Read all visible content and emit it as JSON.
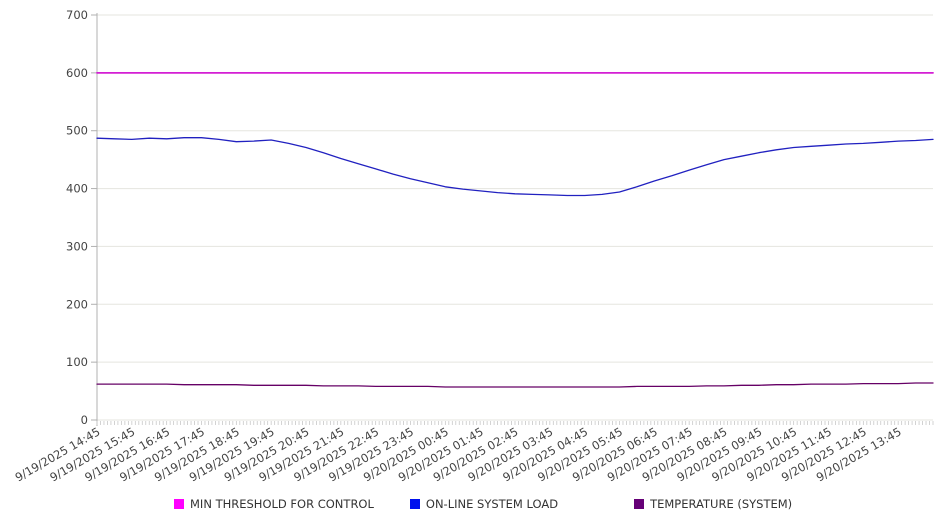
{
  "chart_data": {
    "type": "line",
    "title": "",
    "xlabel": "",
    "ylabel": "",
    "ylim": [
      0,
      700
    ],
    "ytick_step": 100,
    "grid": true,
    "legend_position": "bottom",
    "x_labels": [
      "9/19/2025 14:45",
      "9/19/2025 15:45",
      "9/19/2025 16:45",
      "9/19/2025 17:45",
      "9/19/2025 18:45",
      "9/19/2025 19:45",
      "9/19/2025 20:45",
      "9/19/2025 21:45",
      "9/19/2025 22:45",
      "9/19/2025 23:45",
      "9/20/2025 00:45",
      "9/20/2025 01:45",
      "9/20/2025 02:45",
      "9/20/2025 03:45",
      "9/20/2025 04:45",
      "9/20/2025 05:45",
      "9/20/2025 06:45",
      "9/20/2025 07:45",
      "9/20/2025 08:45",
      "9/20/2025 09:45",
      "9/20/2025 10:45",
      "9/20/2025 11:45",
      "9/20/2025 12:45",
      "9/20/2025 13:45"
    ],
    "x_minutes_per_point": 30,
    "x_points_per_label": 2,
    "series": [
      {
        "name": "MIN THRESHOLD FOR CONTROL",
        "color": "#D41ED4",
        "legend_color": "#FF00FF",
        "width": 1.8,
        "values": [
          600,
          600
        ]
      },
      {
        "name": "ON-LINE SYSTEM LOAD",
        "color": "#2121C0",
        "legend_color": "#0011EE",
        "width": 1.3,
        "values": [
          487,
          486,
          485,
          487,
          486,
          488,
          488,
          485,
          481,
          482,
          484,
          478,
          471,
          462,
          452,
          443,
          434,
          425,
          417,
          410,
          403,
          399,
          396,
          393,
          391,
          390,
          389,
          388,
          388,
          390,
          394,
          403,
          413,
          422,
          432,
          441,
          450,
          456,
          462,
          467,
          471,
          473,
          475,
          477,
          478,
          480,
          482,
          483,
          485
        ]
      },
      {
        "name": "TEMPERATURE (SYSTEM)",
        "color": "#660066",
        "legend_color": "#660077",
        "width": 1.3,
        "values": [
          62,
          62,
          62,
          62,
          62,
          61,
          61,
          61,
          61,
          60,
          60,
          60,
          60,
          59,
          59,
          59,
          58,
          58,
          58,
          58,
          57,
          57,
          57,
          57,
          57,
          57,
          57,
          57,
          57,
          57,
          57,
          58,
          58,
          58,
          58,
          59,
          59,
          60,
          60,
          61,
          61,
          62,
          62,
          62,
          63,
          63,
          63,
          64,
          64
        ]
      }
    ]
  },
  "style": {
    "grid_color": "#e5e5df",
    "axis_color": "#b0b0b0",
    "tick_color": "#c8c8c8",
    "label_color": "#444444"
  }
}
